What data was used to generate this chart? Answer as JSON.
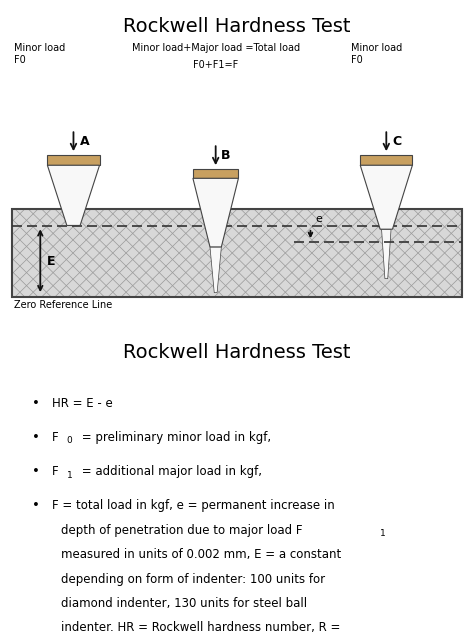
{
  "title1": "Rockwell Hardness Test",
  "title2": "Rockwell Hardness Test",
  "arrow_color": "#111111",
  "label_A": "A",
  "label_B": "B",
  "label_C": "C",
  "label_E": "E",
  "label_e": "e",
  "text_minor_load_left": "Minor load\nF0",
  "text_minor_load_right": "Minor load\nF0",
  "text_total_load_line1": "Minor load+Major load =Total load",
  "text_total_load_line2": "F0+F1=F",
  "text_zero_ref": "Zero Reference Line",
  "bg_color": "#ffffff",
  "material_fill": "#d8d8d8",
  "material_edge": "#444444",
  "hatch_color": "#999999",
  "indenter_fill": "#c8a060",
  "indenter_edge": "#444444",
  "cone_fill": "#f8f8f8",
  "dashed_color": "#333333",
  "font_size_title": 14,
  "font_size_body": 8.5,
  "font_size_small": 7.0,
  "font_size_label": 9.0
}
